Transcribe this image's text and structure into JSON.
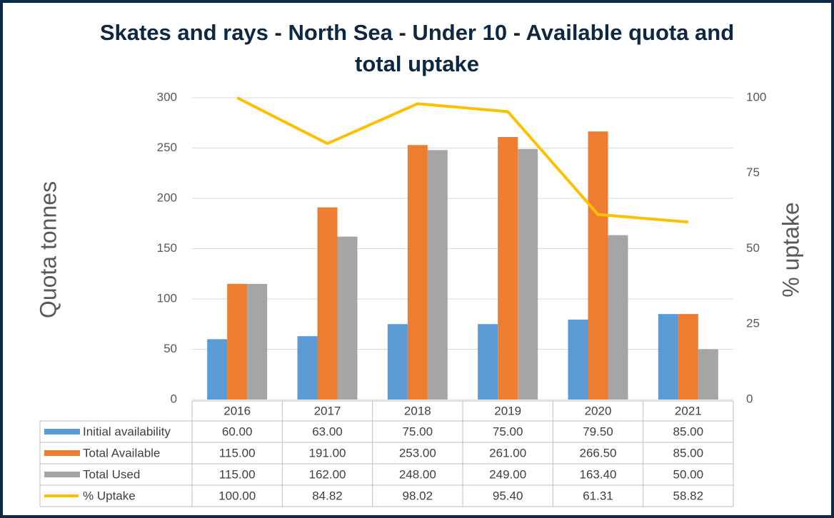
{
  "chart_data": {
    "type": "bar",
    "title": "Skates and rays - North Sea - Under 10 - Available quota and total uptake",
    "y_label": "Quota tonnes",
    "y2_label": "% uptake",
    "categories": [
      "2016",
      "2017",
      "2018",
      "2019",
      "2020",
      "2021"
    ],
    "ylim": [
      0,
      300
    ],
    "yticks": [
      0,
      50,
      100,
      150,
      200,
      250,
      300
    ],
    "y2lim": [
      0,
      100
    ],
    "y2ticks": [
      0,
      25,
      50,
      75,
      100
    ],
    "grid": true,
    "series": [
      {
        "name": "Initial availability",
        "type": "bar",
        "color": "#5b9bd5",
        "values": [
          60,
          63,
          75,
          75,
          79.5,
          85
        ],
        "value_labels": [
          "60.00",
          "63.00",
          "75.00",
          "75.00",
          "79.50",
          "85.00"
        ]
      },
      {
        "name": "Total Available",
        "type": "bar",
        "color": "#ed7d31",
        "values": [
          115,
          191,
          253,
          261,
          266.5,
          85
        ],
        "value_labels": [
          "115.00",
          "191.00",
          "253.00",
          "261.00",
          "266.50",
          "85.00"
        ]
      },
      {
        "name": "Total Used",
        "type": "bar",
        "color": "#a5a5a5",
        "values": [
          115,
          162,
          248,
          249,
          163.4,
          50
        ],
        "value_labels": [
          "115.00",
          "162.00",
          "248.00",
          "249.00",
          "163.40",
          "50.00"
        ]
      },
      {
        "name": "% Uptake",
        "type": "line",
        "axis": "y2",
        "color": "#ffc000",
        "values": [
          100,
          84.82,
          98.02,
          95.4,
          61.31,
          58.82
        ],
        "value_labels": [
          "100.00",
          "84.82",
          "98.02",
          "95.40",
          "61.31",
          "58.82"
        ]
      }
    ]
  }
}
